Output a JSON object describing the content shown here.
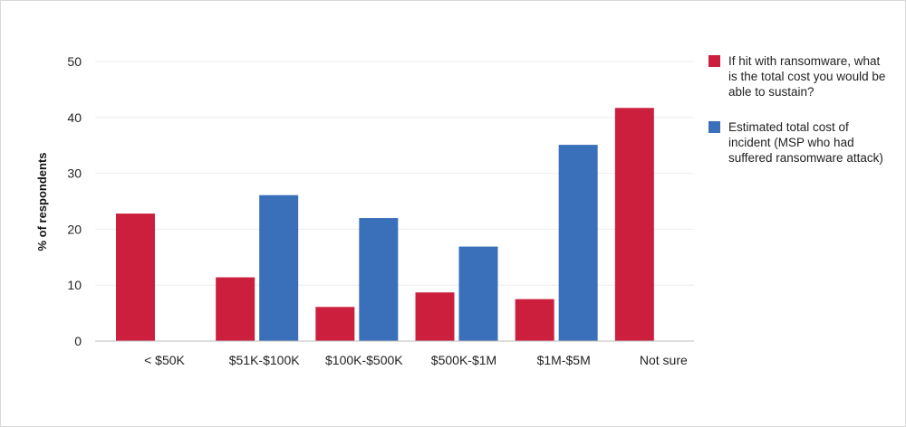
{
  "chart_data": {
    "type": "bar",
    "categories": [
      "< $50K",
      "$51K-$100K",
      "$100K-$500K",
      "$500K-$1M",
      "$1M-$5M",
      "Not sure"
    ],
    "series": [
      {
        "name": "If hit with ransomware, what is the total cost you would be able to sustain?",
        "color": "#cc1f3e",
        "values": [
          22.8,
          11.4,
          6.1,
          8.7,
          7.5,
          41.7
        ]
      },
      {
        "name": "Estimated total cost of incident (MSP who had suffered ransomware attack)",
        "color": "#3a6fb9",
        "values": [
          null,
          26.1,
          22.0,
          16.9,
          35.1,
          null
        ]
      }
    ],
    "title": "",
    "xlabel": "",
    "ylabel": "% of respondents",
    "ylim": [
      0,
      50
    ],
    "yticks": [
      0,
      10,
      20,
      30,
      40,
      50
    ],
    "grid": true,
    "legend_position": "right"
  }
}
